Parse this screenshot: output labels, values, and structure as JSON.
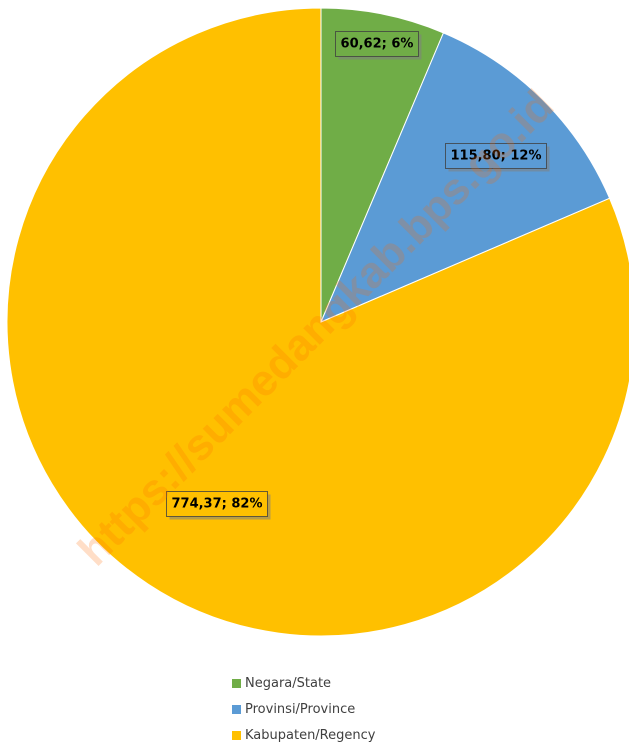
{
  "chart_data": {
    "type": "pie",
    "categories": [
      "Negara/State",
      "Provinsi/Province",
      "Kabupaten/Regency"
    ],
    "values": [
      60.62,
      115.8,
      774.37
    ],
    "data_labels": [
      "60,62; 6%",
      "115,80; 12%",
      "774,37; 82%"
    ],
    "colors": [
      "#70ad47",
      "#5b9bd5",
      "#ffc000"
    ],
    "start_angle": "12 o'clock",
    "direction": "clockwise",
    "legend_position": "bottom"
  },
  "watermark": "https://sumedangkab.bps.go.id"
}
